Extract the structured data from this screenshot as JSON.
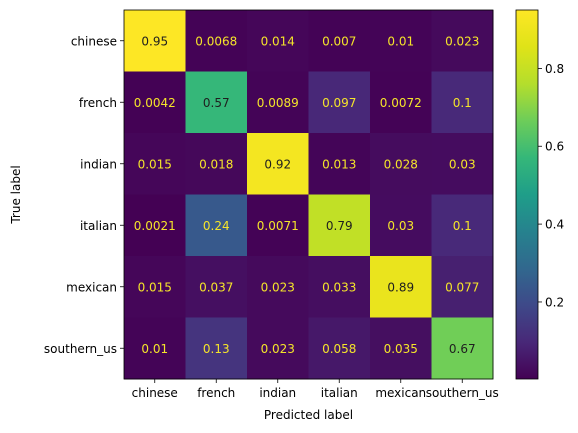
{
  "chart_data": {
    "type": "heatmap",
    "title": "",
    "xlabel": "Predicted label",
    "ylabel": "True label",
    "x_categories": [
      "chinese",
      "french",
      "indian",
      "italian",
      "mexican",
      "southern_us"
    ],
    "y_categories": [
      "chinese",
      "french",
      "indian",
      "italian",
      "mexican",
      "southern_us"
    ],
    "values": [
      [
        0.95,
        0.0068,
        0.014,
        0.007,
        0.01,
        0.023
      ],
      [
        0.0042,
        0.57,
        0.0089,
        0.097,
        0.0072,
        0.1
      ],
      [
        0.015,
        0.018,
        0.92,
        0.013,
        0.028,
        0.03
      ],
      [
        0.0021,
        0.24,
        0.0071,
        0.79,
        0.03,
        0.1
      ],
      [
        0.015,
        0.037,
        0.023,
        0.033,
        0.89,
        0.077
      ],
      [
        0.01,
        0.13,
        0.023,
        0.058,
        0.035,
        0.67
      ]
    ],
    "value_labels": [
      [
        "0.95",
        "0.0068",
        "0.014",
        "0.007",
        "0.01",
        "0.023"
      ],
      [
        "0.0042",
        "0.57",
        "0.0089",
        "0.097",
        "0.0072",
        "0.1"
      ],
      [
        "0.015",
        "0.018",
        "0.92",
        "0.013",
        "0.028",
        "0.03"
      ],
      [
        "0.0021",
        "0.24",
        "0.0071",
        "0.79",
        "0.03",
        "0.1"
      ],
      [
        "0.015",
        "0.037",
        "0.023",
        "0.033",
        "0.89",
        "0.077"
      ],
      [
        "0.01",
        "0.13",
        "0.023",
        "0.058",
        "0.035",
        "0.67"
      ]
    ],
    "colormap": "viridis",
    "colorbar": {
      "range": [
        0.0021,
        0.95
      ],
      "ticks": [
        0.2,
        0.4,
        0.6,
        0.8
      ],
      "tick_labels": [
        "0.2",
        "0.4",
        "0.6",
        "0.8"
      ]
    },
    "grid": false
  }
}
